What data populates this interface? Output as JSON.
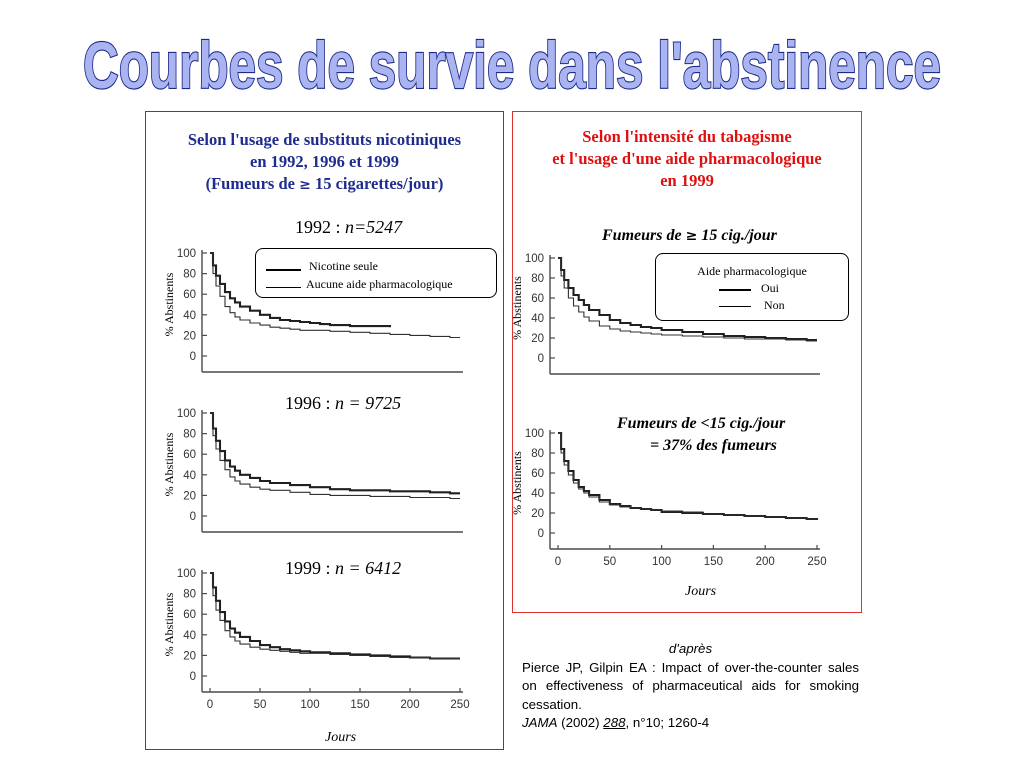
{
  "title": "Courbes de survie dans l'abstinence",
  "left_panel": {
    "title_line1": "Selon l'usage de substituts nicotiniques",
    "title_line2": "en 1992, 1996 et 1999",
    "title_line3_a": "(Fumeurs de ",
    "title_line3_geq": "≥",
    "title_line3_b": " 15 cigarettes/jour)"
  },
  "right_panel": {
    "title_line1": "Selon l'intensité du tabagisme",
    "title_line2": "et l'usage d'une aide pharmacologique",
    "title_line3": "en 1999",
    "subtitle1_a": "Fumeurs de ",
    "subtitle1_geq": "≥",
    "subtitle1_b": " 15 cig./jour",
    "subtitle2_line1": "Fumeurs de <15 cig./jour",
    "subtitle2_line2": "= 37%  des fumeurs"
  },
  "legend_left": {
    "thick": "Nicotine seule",
    "thin": "Aucune aide pharmacologique"
  },
  "legend_right": {
    "title": "Aide pharmacologique",
    "thick": "Oui",
    "thin": "Non"
  },
  "y_axis_label": "% Abstinents",
  "x_axis_label": "Jours",
  "chart_titles": {
    "c1992_year": "1992 : ",
    "c1992_n": "n=5247",
    "c1996_year": "1996 : ",
    "c1996_n": "n = 9725",
    "c1999_year": "1999 : ",
    "c1999_n": "n = 6412"
  },
  "reference": {
    "dapres": "d'après",
    "text": "Pierce JP, Gilpin EA : Impact of over-the-counter sales on effectiveness of pharmaceutical aids for smoking cessation.",
    "journal": "JAMA",
    "year": " (2002) ",
    "volume": "288",
    "rest": ", n°10; 1260-4"
  },
  "colors": {
    "left_border": "#3a3ac8",
    "right_border": "#e03030",
    "left_title": "#1f2c8f",
    "right_title": "#e01010",
    "title_fill": "#a9b4f0",
    "title_stroke": "#1d2a88"
  },
  "chart_data": [
    {
      "id": "c1992",
      "type": "line",
      "xlim": [
        0,
        250
      ],
      "ylim": [
        0,
        100
      ],
      "yticks": [
        0,
        20,
        40,
        60,
        80,
        100
      ],
      "xticks": [],
      "series": [
        {
          "name": "Nicotine seule",
          "x": [
            0,
            3,
            6,
            10,
            15,
            20,
            25,
            30,
            40,
            50,
            60,
            70,
            80,
            90,
            100,
            110,
            120,
            130,
            140,
            150,
            160,
            170,
            180
          ],
          "y": [
            100,
            88,
            78,
            70,
            62,
            56,
            52,
            48,
            44,
            40,
            37,
            35,
            34,
            33,
            32,
            31,
            30,
            30,
            29,
            29,
            29,
            29,
            28
          ]
        },
        {
          "name": "Aucune aide pharmacologique",
          "x": [
            0,
            3,
            6,
            10,
            15,
            20,
            25,
            30,
            40,
            50,
            60,
            70,
            80,
            90,
            100,
            120,
            140,
            160,
            180,
            200,
            220,
            240,
            250
          ],
          "y": [
            100,
            80,
            68,
            58,
            48,
            42,
            38,
            35,
            32,
            30,
            28,
            27,
            26,
            25,
            25,
            24,
            23,
            22,
            21,
            20,
            19,
            18,
            18
          ]
        }
      ]
    },
    {
      "id": "c1996",
      "type": "line",
      "xlim": [
        0,
        250
      ],
      "ylim": [
        0,
        100
      ],
      "yticks": [
        0,
        20,
        40,
        60,
        80,
        100
      ],
      "xticks": [],
      "series": [
        {
          "name": "Nicotine seule",
          "x": [
            0,
            3,
            6,
            10,
            15,
            20,
            25,
            30,
            40,
            50,
            60,
            80,
            100,
            120,
            140,
            160,
            180,
            200,
            220,
            240,
            250
          ],
          "y": [
            100,
            85,
            73,
            63,
            54,
            48,
            44,
            40,
            37,
            34,
            32,
            30,
            28,
            26,
            25,
            25,
            24,
            24,
            23,
            22,
            22
          ]
        },
        {
          "name": "Aucune aide pharmacologique",
          "x": [
            0,
            3,
            6,
            10,
            15,
            20,
            25,
            30,
            40,
            50,
            60,
            80,
            100,
            120,
            140,
            160,
            180,
            200,
            220,
            240,
            250
          ],
          "y": [
            100,
            78,
            65,
            54,
            45,
            38,
            34,
            31,
            28,
            26,
            25,
            23,
            21,
            20,
            20,
            19,
            19,
            18,
            18,
            17,
            17
          ]
        }
      ]
    },
    {
      "id": "c1999",
      "type": "line",
      "xlim": [
        0,
        250
      ],
      "ylim": [
        0,
        100
      ],
      "yticks": [
        0,
        20,
        40,
        60,
        80,
        100
      ],
      "xticks": [
        0,
        50,
        100,
        150,
        200,
        250
      ],
      "series": [
        {
          "name": "Nicotine seule",
          "x": [
            0,
            3,
            6,
            10,
            15,
            20,
            25,
            30,
            40,
            50,
            60,
            70,
            80,
            90,
            100,
            120,
            140,
            160,
            180,
            200,
            220,
            240,
            250
          ],
          "y": [
            100,
            86,
            73,
            62,
            53,
            46,
            42,
            38,
            34,
            30,
            28,
            26,
            25,
            24,
            23,
            22,
            21,
            20,
            19,
            18,
            17,
            17,
            17
          ]
        },
        {
          "name": "Aucune aide pharmacologique",
          "x": [
            0,
            3,
            6,
            10,
            15,
            20,
            25,
            30,
            40,
            50,
            60,
            70,
            80,
            90,
            100,
            120,
            140,
            160,
            180,
            200,
            220,
            240,
            250
          ],
          "y": [
            100,
            78,
            64,
            54,
            44,
            38,
            34,
            31,
            28,
            26,
            25,
            24,
            23,
            22,
            22,
            21,
            20,
            19,
            18,
            18,
            17,
            17,
            17
          ]
        }
      ]
    },
    {
      "id": "cR1",
      "type": "line",
      "xlim": [
        0,
        250
      ],
      "ylim": [
        0,
        100
      ],
      "yticks": [
        0,
        20,
        40,
        60,
        80,
        100
      ],
      "xticks": [],
      "series": [
        {
          "name": "Oui",
          "x": [
            0,
            3,
            6,
            10,
            15,
            20,
            25,
            30,
            40,
            50,
            60,
            70,
            80,
            90,
            100,
            120,
            140,
            160,
            180,
            200,
            220,
            240,
            250
          ],
          "y": [
            100,
            88,
            78,
            70,
            63,
            58,
            53,
            48,
            43,
            38,
            35,
            33,
            31,
            30,
            28,
            26,
            24,
            22,
            21,
            20,
            19,
            18,
            18
          ]
        },
        {
          "name": "Non",
          "x": [
            0,
            3,
            6,
            10,
            15,
            20,
            25,
            30,
            40,
            50,
            60,
            70,
            80,
            90,
            100,
            120,
            140,
            160,
            180,
            200,
            220,
            240,
            250
          ],
          "y": [
            100,
            82,
            70,
            60,
            52,
            46,
            41,
            37,
            32,
            29,
            27,
            26,
            25,
            24,
            23,
            22,
            21,
            20,
            19,
            19,
            18,
            17,
            17
          ]
        }
      ]
    },
    {
      "id": "cR2",
      "type": "line",
      "xlim": [
        0,
        250
      ],
      "ylim": [
        0,
        100
      ],
      "yticks": [
        0,
        20,
        40,
        60,
        80,
        100
      ],
      "xticks": [
        0,
        50,
        100,
        150,
        200,
        250
      ],
      "series": [
        {
          "name": "Oui",
          "x": [
            0,
            3,
            6,
            10,
            15,
            20,
            25,
            30,
            40,
            50,
            60,
            70,
            80,
            90,
            100,
            120,
            140,
            160,
            180,
            200,
            220,
            240,
            250
          ],
          "y": [
            100,
            84,
            72,
            62,
            53,
            46,
            42,
            38,
            33,
            29,
            27,
            25,
            24,
            23,
            21,
            20,
            19,
            18,
            17,
            16,
            15,
            14,
            13
          ]
        },
        {
          "name": "Non",
          "x": [
            0,
            3,
            6,
            10,
            15,
            20,
            25,
            30,
            40,
            50,
            60,
            70,
            80,
            90,
            100,
            120,
            140,
            160,
            180,
            200,
            220,
            240,
            250
          ],
          "y": [
            100,
            80,
            68,
            58,
            50,
            44,
            40,
            36,
            31,
            28,
            26,
            25,
            24,
            23,
            22,
            21,
            19,
            18,
            17,
            16,
            15,
            14,
            14
          ]
        }
      ]
    }
  ]
}
